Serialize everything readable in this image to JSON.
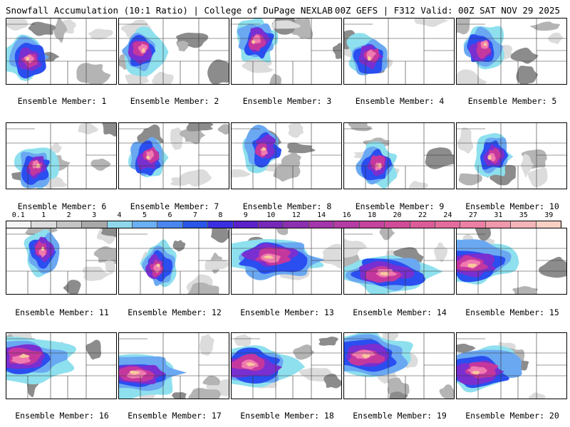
{
  "header": {
    "left": "Snowfall Accumulation (10:1 Ratio) | College of DuPage NEXLAB",
    "right": "00Z GEFS | F312 Valid: 00Z SAT NOV 29 2025"
  },
  "panels": [
    {
      "label": "Ensemble Member: 1"
    },
    {
      "label": "Ensemble Member: 2"
    },
    {
      "label": "Ensemble Member: 3"
    },
    {
      "label": "Ensemble Member: 4"
    },
    {
      "label": "Ensemble Member: 5"
    },
    {
      "label": "Ensemble Member: 6"
    },
    {
      "label": "Ensemble Member: 7"
    },
    {
      "label": "Ensemble Member: 8"
    },
    {
      "label": "Ensemble Member: 9"
    },
    {
      "label": "Ensemble Member: 10"
    },
    {
      "label": "Ensemble Member: 11"
    },
    {
      "label": "Ensemble Member: 12"
    },
    {
      "label": "Ensemble Member: 13"
    },
    {
      "label": "Ensemble Member: 14"
    },
    {
      "label": "Ensemble Member: 15"
    },
    {
      "label": "Ensemble Member: 16"
    },
    {
      "label": "Ensemble Member: 17"
    },
    {
      "label": "Ensemble Member: 18"
    },
    {
      "label": "Ensemble Member: 19"
    },
    {
      "label": "Ensemble Member: 20"
    }
  ],
  "colors": {
    "gray_light": "#dcdcdc",
    "gray_mid": "#b4b4b4",
    "gray_dark": "#8c8c8c",
    "cyan": "#8ee0ee",
    "blue_light": "#6aa8f2",
    "blue": "#2a4ef0",
    "purple": "#7a2fd0",
    "magenta": "#c4389e",
    "pink": "#f07ab0",
    "peach": "#f8c89c"
  },
  "chart_data": {
    "type": "heatmap",
    "title": "Snowfall Accumulation (10:1 Ratio)",
    "colorbar": {
      "ticks": [
        "0.1",
        "1",
        "2",
        "3",
        "4",
        "5",
        "6",
        "7",
        "8",
        "9",
        "10",
        "12",
        "14",
        "16",
        "18",
        "20",
        "22",
        "24",
        "27",
        "31",
        "35",
        "39"
      ],
      "colors": [
        "#f4f4f4",
        "#dcdcdc",
        "#c4c4c4",
        "#a8a8a8",
        "#8fd8ec",
        "#6ab0f4",
        "#4a86f0",
        "#2a56e8",
        "#3a2ee0",
        "#5a22c8",
        "#7628b8",
        "#8c30b0",
        "#a236aa",
        "#b43ca4",
        "#c4449e",
        "#d04c98",
        "#dc5c98",
        "#e46c9c",
        "#ec80a4",
        "#f098ac",
        "#f4b4b8",
        "#f8d0c4"
      ]
    }
  }
}
